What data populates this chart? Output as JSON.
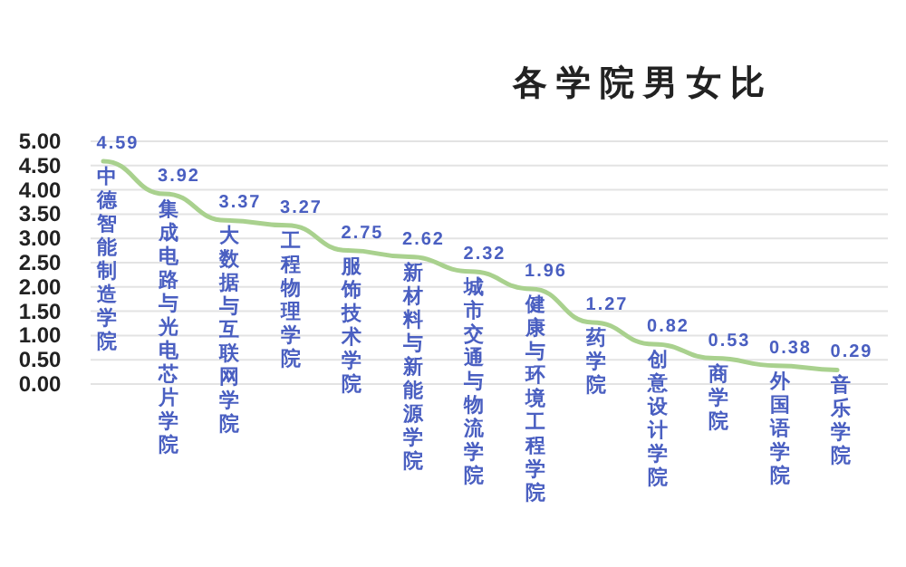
{
  "chart_data": {
    "type": "line",
    "title": "各学院男女比",
    "categories": [
      "中德智能制造学院",
      "集成电路与光电芯片学院",
      "大数据与互联网学院",
      "工程物理学院",
      "服饰技术学院",
      "新材料与新能源学院",
      "城市交通与物流学院",
      "健康与环境工程学院",
      "药学院",
      "创意设计学院",
      "商学院",
      "外国语学院",
      "音乐学院"
    ],
    "series": [
      {
        "color": "#a9d18e",
        "values": [
          4.59,
          3.92,
          3.37,
          3.27,
          2.75,
          2.62,
          2.32,
          1.96,
          1.27,
          0.82,
          0.53,
          0.38,
          0.29
        ]
      }
    ],
    "ylim": [
      0,
      5
    ],
    "yticks": [
      {
        "value": 0,
        "label": "0.00"
      },
      {
        "value": 0.5,
        "label": "0.50"
      },
      {
        "value": 1,
        "label": "1.00"
      },
      {
        "value": 1.5,
        "label": "1.50"
      },
      {
        "value": 2,
        "label": "2.00"
      },
      {
        "value": 2.5,
        "label": "2.50"
      },
      {
        "value": 3,
        "label": "3.00"
      },
      {
        "value": 3.5,
        "label": "3.50"
      },
      {
        "value": 4,
        "label": "4.00"
      },
      {
        "value": 4.5,
        "label": "4.50"
      },
      {
        "value": 5,
        "label": "5.00"
      }
    ],
    "grid": "y",
    "data_labels": true,
    "marker": "none",
    "line_style": "solid"
  }
}
